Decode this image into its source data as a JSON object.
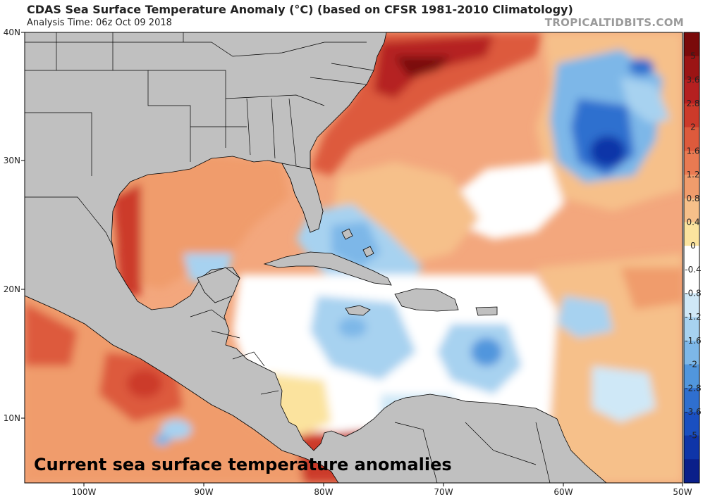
{
  "header": {
    "title": "CDAS Sea Surface Temperature Anomaly (°C) (based on CFSR 1981-2010 Climatology)",
    "subtitle": "Analysis Time: 06z Oct 09 2018",
    "watermark": "TROPICALTIDBITS.COM"
  },
  "caption": "Current sea surface temperature anomalies",
  "map": {
    "lon_ticks": [
      "100W",
      "90W",
      "80W",
      "70W",
      "60W",
      "50W"
    ],
    "lat_ticks": [
      "40N",
      "30N",
      "20N",
      "10N"
    ]
  },
  "colorbar": {
    "labels": [
      "5",
      "3.6",
      "2.8",
      "2",
      "1.6",
      "1.2",
      "0.8",
      "0.4",
      "0",
      "-0.4",
      "-0.8",
      "-1.2",
      "-1.6",
      "-2",
      "-2.8",
      "-3.6",
      "-5"
    ],
    "colors": [
      "#7a0a0a",
      "#9b1414",
      "#b52020",
      "#cc3a2a",
      "#dd5a3c",
      "#e97a52",
      "#f09c6c",
      "#f6c08a",
      "#fbe39e",
      "#ffffff",
      "#ffffff",
      "#cfe8f7",
      "#a7d2f0",
      "#7db7e8",
      "#5196dd",
      "#2f6fcf",
      "#1a4fc0",
      "#0f35a8",
      "#0a1f8a"
    ]
  },
  "colors": {
    "land": "#c0c0c0",
    "border": "#000000",
    "ocean_base": "#f3a77d"
  }
}
